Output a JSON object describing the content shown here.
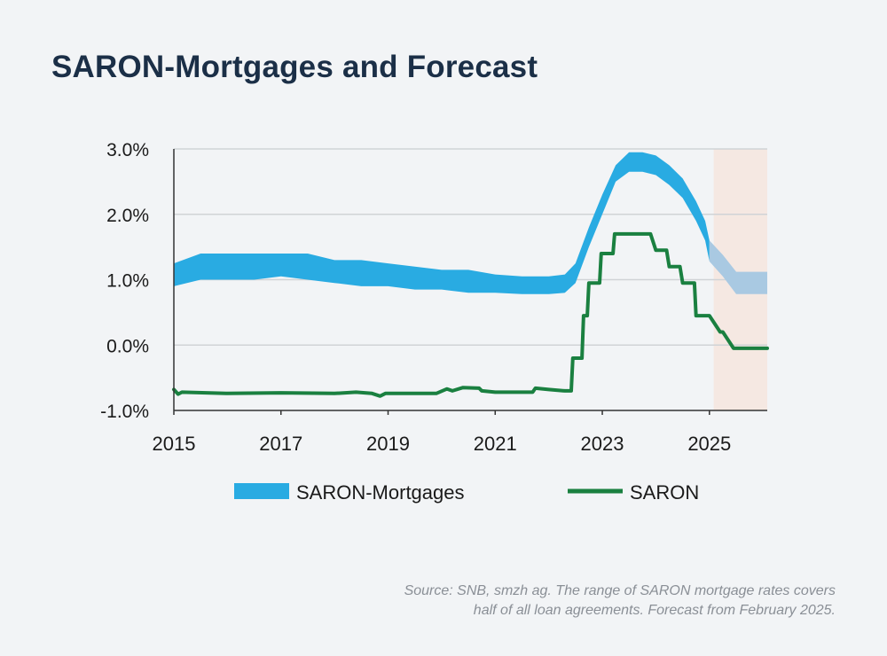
{
  "title": "SARON-Mortgages and Forecast",
  "source_line1": "Source: SNB, smzh ag. The range of SARON mortgage rates covers",
  "source_line2": "half of all loan agreements. Forecast from February 2025.",
  "colors": {
    "mortgage_band": "#29abe2",
    "forecast_band": "#a9c9e2",
    "saron_line": "#1a8040",
    "forecast_shade": "#f5e8e2",
    "grid": "#d0d3d6",
    "axis": "#333333"
  },
  "chart_data": {
    "type": "area",
    "title": "SARON-Mortgages and Forecast",
    "xlabel": "",
    "ylabel": "",
    "xlim": [
      2015.0,
      2026.08
    ],
    "ylim": [
      -1.0,
      3.0
    ],
    "y_ticks": [
      3.0,
      2.0,
      1.0,
      0.0,
      -1.0
    ],
    "y_tick_labels": [
      "3.0%",
      "2.0%",
      "1.0%",
      "0.0%",
      "-1.0%"
    ],
    "x_ticks": [
      2015,
      2017,
      2019,
      2021,
      2023,
      2025
    ],
    "x_tick_labels": [
      "2015",
      "2017",
      "2019",
      "2021",
      "2023",
      "2025"
    ],
    "grid": true,
    "forecast_start": 2025.08,
    "legend": [
      {
        "name": "SARON-Mortgages",
        "symbol": "band"
      },
      {
        "name": "SARON",
        "symbol": "line"
      }
    ],
    "legend_position": "bottom",
    "series": [
      {
        "name": "SARON-Mortgages",
        "kind": "band",
        "x": [
          2015.0,
          2015.5,
          2016.0,
          2016.5,
          2017.0,
          2017.5,
          2018.0,
          2018.5,
          2019.0,
          2019.5,
          2020.0,
          2020.5,
          2021.0,
          2021.5,
          2022.0,
          2022.3,
          2022.5,
          2022.75,
          2023.0,
          2023.25,
          2023.5,
          2023.75,
          2024.0,
          2024.25,
          2024.5,
          2024.75,
          2024.92,
          2025.0
        ],
        "low": [
          0.9,
          1.0,
          1.0,
          1.0,
          1.05,
          1.0,
          0.95,
          0.9,
          0.9,
          0.85,
          0.85,
          0.8,
          0.8,
          0.78,
          0.78,
          0.8,
          0.95,
          1.5,
          2.0,
          2.5,
          2.65,
          2.65,
          2.6,
          2.45,
          2.25,
          1.9,
          1.6,
          1.28
        ],
        "high": [
          1.25,
          1.4,
          1.4,
          1.4,
          1.4,
          1.4,
          1.3,
          1.3,
          1.25,
          1.2,
          1.15,
          1.15,
          1.08,
          1.05,
          1.05,
          1.08,
          1.25,
          1.8,
          2.3,
          2.75,
          2.95,
          2.95,
          2.9,
          2.75,
          2.55,
          2.2,
          1.9,
          1.6
        ]
      },
      {
        "name": "SARON-Mortgages forecast",
        "kind": "band",
        "x": [
          2025.0,
          2025.25,
          2025.5,
          2025.75,
          2026.08
        ],
        "low": [
          1.28,
          1.05,
          0.78,
          0.78,
          0.78
        ],
        "high": [
          1.6,
          1.38,
          1.12,
          1.12,
          1.12
        ]
      },
      {
        "name": "SARON",
        "kind": "line",
        "x": [
          2015.0,
          2015.08,
          2015.15,
          2016.0,
          2017.0,
          2018.0,
          2018.4,
          2018.7,
          2018.85,
          2018.95,
          2019.0,
          2019.9,
          2020.1,
          2020.2,
          2020.4,
          2020.7,
          2020.75,
          2021.0,
          2021.5,
          2021.7,
          2021.75,
          2022.0,
          2022.3,
          2022.42,
          2022.45,
          2022.62,
          2022.65,
          2022.72,
          2022.75,
          2022.95,
          2022.98,
          2023.2,
          2023.23,
          2023.45,
          2023.48,
          2023.9,
          2024.0,
          2024.2,
          2024.25,
          2024.45,
          2024.5,
          2024.72,
          2024.75,
          2024.92,
          2024.95,
          2025.0,
          2025.2,
          2025.25,
          2025.45,
          2025.5,
          2025.75,
          2026.08
        ],
        "y": [
          -0.68,
          -0.75,
          -0.72,
          -0.74,
          -0.73,
          -0.74,
          -0.72,
          -0.74,
          -0.78,
          -0.74,
          -0.74,
          -0.74,
          -0.67,
          -0.7,
          -0.65,
          -0.66,
          -0.7,
          -0.72,
          -0.72,
          -0.72,
          -0.66,
          -0.68,
          -0.7,
          -0.7,
          -0.2,
          -0.2,
          0.45,
          0.45,
          0.95,
          0.95,
          1.4,
          1.4,
          1.7,
          1.7,
          1.7,
          1.7,
          1.45,
          1.45,
          1.2,
          1.2,
          0.95,
          0.95,
          0.45,
          0.45,
          0.45,
          0.45,
          0.2,
          0.2,
          -0.05,
          -0.05,
          -0.05,
          -0.05
        ]
      }
    ]
  }
}
